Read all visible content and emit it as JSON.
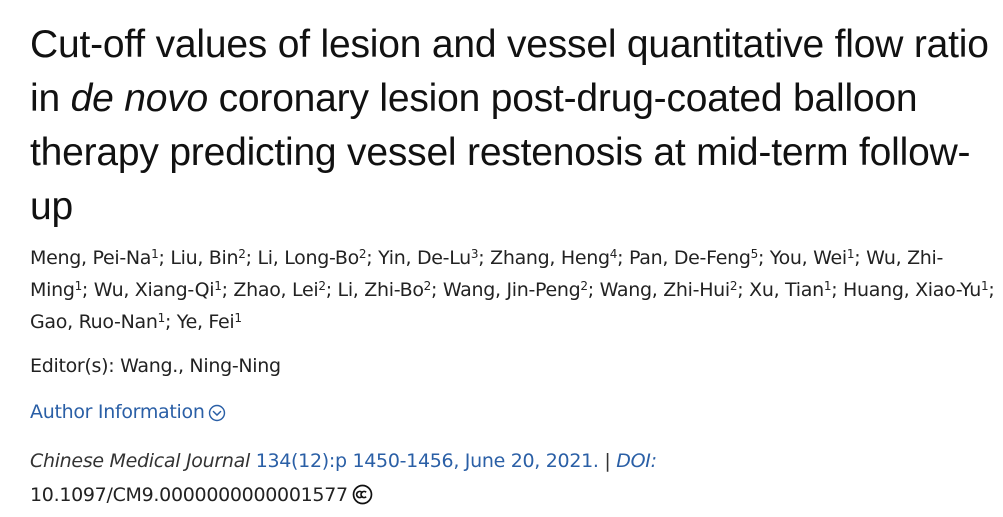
{
  "article": {
    "title_part1": "Cut-off values of lesion and vessel quantitative flow ratio in ",
    "title_italic": "de novo",
    "title_part2": " coronary lesion post-drug-coated balloon therapy predicting vessel restenosis at mid-term follow-up",
    "authors": [
      {
        "name": "Meng, Pei-Na",
        "aff": "1"
      },
      {
        "name": "Liu, Bin",
        "aff": "2"
      },
      {
        "name": "Li, Long-Bo",
        "aff": "2"
      },
      {
        "name": "Yin, De-Lu",
        "aff": "3"
      },
      {
        "name": "Zhang, Heng",
        "aff": "4"
      },
      {
        "name": "Pan, De-Feng",
        "aff": "5"
      },
      {
        "name": "You, Wei",
        "aff": "1"
      },
      {
        "name": "Wu, Zhi-Ming",
        "aff": "1"
      },
      {
        "name": "Wu, Xiang-Qi",
        "aff": "1"
      },
      {
        "name": "Zhao, Lei",
        "aff": "2"
      },
      {
        "name": "Li, Zhi-Bo",
        "aff": "2"
      },
      {
        "name": "Wang, Jin-Peng",
        "aff": "2"
      },
      {
        "name": "Wang, Zhi-Hui",
        "aff": "2"
      },
      {
        "name": "Xu, Tian",
        "aff": "1"
      },
      {
        "name": "Huang, Xiao-Yu",
        "aff": "1"
      },
      {
        "name": "Gao, Ruo-Nan",
        "aff": "1"
      },
      {
        "name": "Ye, Fei",
        "aff": "1"
      }
    ],
    "editors": "Editor(s): Wang., Ning-Ning",
    "author_info_label": "Author Information",
    "journal": "Chinese Medical Journal",
    "volume_pages_date": "134(12):p 1450-1456, June 20, 2021.",
    "separator": "|",
    "doi_label": "DOI:",
    "doi": "10.1097/CM9.0000000000001577",
    "license_icon": "creative-commons-icon"
  },
  "colors": {
    "link": "#2a5fa6",
    "text": "#222222"
  }
}
